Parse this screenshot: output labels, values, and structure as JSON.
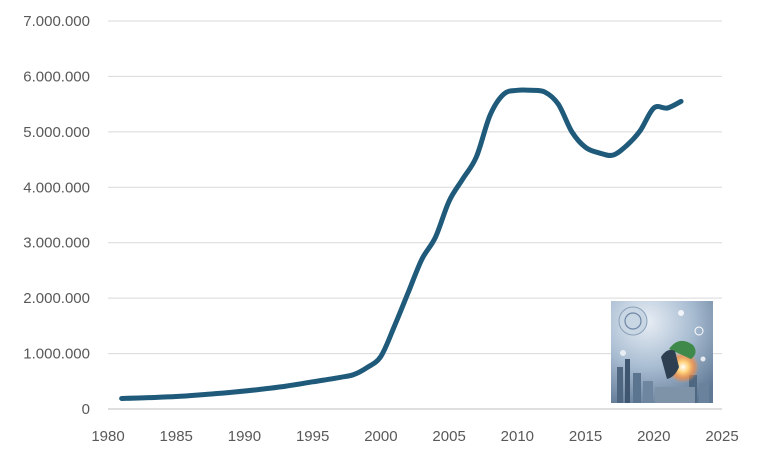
{
  "chart_data": {
    "type": "line",
    "title": "",
    "xlabel": "",
    "ylabel": "",
    "xlim": [
      1980,
      2025
    ],
    "ylim": [
      0,
      7000000
    ],
    "x_ticks": [
      1980,
      1985,
      1990,
      1995,
      2000,
      2005,
      2010,
      2015,
      2020,
      2025
    ],
    "x_tick_labels": [
      "1980",
      "1985",
      "1990",
      "1995",
      "2000",
      "2005",
      "2010",
      "2015",
      "2020",
      "2025"
    ],
    "y_ticks": [
      0,
      1000000,
      2000000,
      3000000,
      4000000,
      5000000,
      6000000,
      7000000
    ],
    "y_tick_labels": [
      "0",
      "1.000.000",
      "2.000.000",
      "3.000.000",
      "4.000.000",
      "5.000.000",
      "6.000.000",
      "7.000.000"
    ],
    "grid": "horizontal",
    "legend": "none",
    "series": [
      {
        "color": "#1f5a7a",
        "x": [
          1981,
          1983,
          1985,
          1987,
          1989,
          1991,
          1993,
          1995,
          1997,
          1998,
          1999,
          2000,
          2001,
          2002,
          2003,
          2004,
          2005,
          2006,
          2007,
          2008,
          2009,
          2010,
          2011,
          2012,
          2013,
          2014,
          2015,
          2016,
          2017,
          2018,
          2019,
          2020,
          2021,
          2022
        ],
        "y": [
          190000,
          205000,
          225000,
          260000,
          300000,
          350000,
          410000,
          490000,
          570000,
          620000,
          750000,
          950000,
          1500000,
          2100000,
          2700000,
          3100000,
          3750000,
          4150000,
          4550000,
          5300000,
          5680000,
          5750000,
          5750000,
          5720000,
          5500000,
          5000000,
          4720000,
          4620000,
          4580000,
          4750000,
          5020000,
          5430000,
          5430000,
          5550000
        ]
      }
    ]
  },
  "decor": {
    "image_icon": "thinker-city-illustration"
  }
}
